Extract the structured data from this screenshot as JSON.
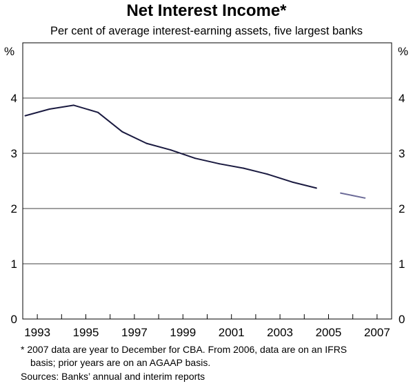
{
  "chart_data": {
    "type": "line",
    "title": "Net Interest Income*",
    "subtitle": "Per cent of average interest-earning assets, five largest banks",
    "ylabel_left": "%",
    "ylabel_right": "%",
    "ylim": [
      0,
      5
    ],
    "yticks": [
      0,
      1,
      2,
      3,
      4
    ],
    "xlim": [
      1992.4,
      2007.6
    ],
    "xtick_labels": [
      "1993",
      "1995",
      "1997",
      "1999",
      "2001",
      "2003",
      "2005",
      "2007"
    ],
    "xtick_values": [
      1993,
      1995,
      1997,
      1999,
      2001,
      2003,
      2005,
      2007
    ],
    "grid": true,
    "series": [
      {
        "color": "#1a1a40",
        "x": [
          1992.5,
          1993.5,
          1994.5,
          1995.5,
          1996.5,
          1997.5,
          1998.5,
          1999.5,
          2000.5,
          2001.5,
          2002.5,
          2003.5,
          2004.5
        ],
        "y": [
          3.68,
          3.8,
          3.87,
          3.74,
          3.39,
          3.18,
          3.06,
          2.91,
          2.81,
          2.73,
          2.62,
          2.48,
          2.37
        ]
      },
      {
        "color": "#6c6b98",
        "x": [
          2005.5,
          2006.5
        ],
        "y": [
          2.28,
          2.19
        ]
      }
    ],
    "footnotes": [
      "* 2007 data are year to December for CBA. From 2006, data are on an IFRS",
      "basis; prior years are on an AGAAP basis.",
      "Sources: Banks’ annual and interim reports"
    ]
  }
}
